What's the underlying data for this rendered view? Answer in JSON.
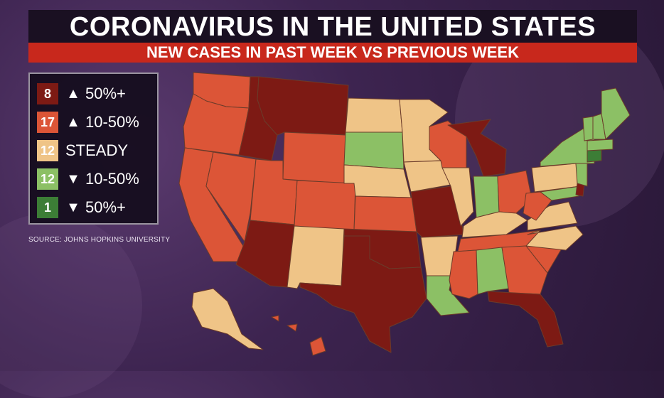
{
  "title": "CORONAVIRUS IN THE UNITED STATES",
  "subtitle": "NEW CASES IN PAST WEEK VS PREVIOUS WEEK",
  "source": "SOURCE: JOHNS HOPKINS UNIVERSITY",
  "colors": {
    "up_50": "#7d1a14",
    "up_10_50": "#dc5537",
    "steady": "#efc487",
    "down_10_50": "#8cc065",
    "down_50": "#3c7d36",
    "border": "#5a3a2a"
  },
  "legend": [
    {
      "count": "8",
      "arrow": "▲",
      "label": "50%+",
      "color_key": "up_50"
    },
    {
      "count": "17",
      "arrow": "▲",
      "label": "10-50%",
      "color_key": "up_10_50"
    },
    {
      "count": "12",
      "arrow": "",
      "label": "STEADY",
      "color_key": "steady"
    },
    {
      "count": "12",
      "arrow": "▼",
      "label": "10-50%",
      "color_key": "down_10_50"
    },
    {
      "count": "1",
      "arrow": "▼",
      "label": "50%+",
      "color_key": "down_50"
    }
  ]
}
